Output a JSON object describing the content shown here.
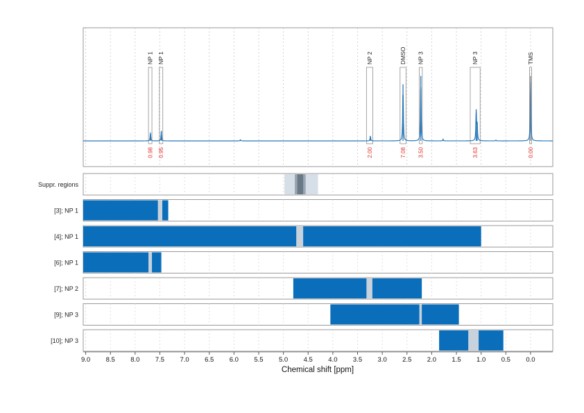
{
  "chart_data": {
    "type": "line",
    "xlabel": "Chemical shift [ppm]",
    "xlim": [
      9.05,
      -0.45
    ],
    "x_ticks": [
      "9.0",
      "8.5",
      "8.0",
      "7.5",
      "7.0",
      "6.5",
      "6.0",
      "5.5",
      "5.0",
      "4.5",
      "4.0",
      "3.5",
      "3.0",
      "2.5",
      "2.0",
      "1.5",
      "1.0",
      "0.5",
      "0.0"
    ],
    "grid": true,
    "colors": {
      "spectrum": "#2878b8",
      "bar": "#0a6eba",
      "gap": "#c8d2dc",
      "suppr_light": "#d6dfe7",
      "suppr_mid": "#9aa7b3",
      "suppr_dark": "#6b7987",
      "integral_label": "#e0302a",
      "frame": "#9a9a9a"
    },
    "spectrum_peaks": [
      {
        "ppm": 7.69,
        "height": 0.1
      },
      {
        "ppm": 7.47,
        "height": 0.12
      },
      {
        "ppm": 5.87,
        "height": 0.015
      },
      {
        "ppm": 3.24,
        "height": 0.06
      },
      {
        "ppm": 2.58,
        "height": 0.68
      },
      {
        "ppm": 2.22,
        "height": 0.78
      },
      {
        "ppm": 1.77,
        "height": 0.02
      },
      {
        "ppm": 1.1,
        "height": 0.38
      },
      {
        "ppm": 1.08,
        "height": 0.22
      },
      {
        "ppm": 0.7,
        "height": 0.01
      },
      {
        "ppm": 0.0,
        "height": 0.78
      }
    ],
    "annotations": [
      {
        "label": "NP 1",
        "ppm_from": 7.73,
        "ppm_to": 7.66,
        "integral": "0.98"
      },
      {
        "label": "NP 1",
        "ppm_from": 7.51,
        "ppm_to": 7.44,
        "integral": "0.95"
      },
      {
        "label": "NP 2",
        "ppm_from": 3.32,
        "ppm_to": 3.19,
        "integral": "2.00"
      },
      {
        "label": "DMSO",
        "ppm_from": 2.64,
        "ppm_to": 2.52,
        "integral": "7.08"
      },
      {
        "label": "NP 3",
        "ppm_from": 2.25,
        "ppm_to": 2.19,
        "integral": "3.50"
      },
      {
        "label": "NP 3",
        "ppm_from": 1.22,
        "ppm_to": 1.02,
        "integral": "3.63"
      },
      {
        "label": "TMS",
        "ppm_from": 0.02,
        "ppm_to": -0.02,
        "integral": "0.00"
      }
    ],
    "rows": [
      {
        "label": "Suppr. regions",
        "kind": "suppr",
        "regions": [
          {
            "from": 4.98,
            "to": 4.3,
            "tone": "light"
          },
          {
            "from": 4.77,
            "to": 4.55,
            "tone": "mid"
          },
          {
            "from": 4.72,
            "to": 4.6,
            "tone": "dark"
          }
        ]
      },
      {
        "label": "[3]; NP 1",
        "segments": [
          {
            "from": 9.05,
            "to": 7.33
          }
        ],
        "gaps": [
          {
            "from": 7.54,
            "to": 7.45
          }
        ]
      },
      {
        "label": "[4]; NP 1",
        "segments": [
          {
            "from": 9.05,
            "to": 1.0
          }
        ],
        "gaps": [
          {
            "from": 4.74,
            "to": 4.6
          }
        ]
      },
      {
        "label": "[6]; NP 1",
        "segments": [
          {
            "from": 9.05,
            "to": 7.47
          }
        ],
        "gaps": [
          {
            "from": 7.73,
            "to": 7.66
          }
        ]
      },
      {
        "label": "[7]; NP 2",
        "segments": [
          {
            "from": 4.8,
            "to": 2.2
          }
        ],
        "gaps": [
          {
            "from": 3.32,
            "to": 3.2
          }
        ]
      },
      {
        "label": "[9]; NP 3",
        "segments": [
          {
            "from": 4.05,
            "to": 1.45
          }
        ],
        "gaps": [
          {
            "from": 2.25,
            "to": 2.2
          }
        ]
      },
      {
        "label": "[10]; NP 3",
        "segments": [
          {
            "from": 1.85,
            "to": 0.55
          }
        ],
        "gaps": [
          {
            "from": 1.26,
            "to": 1.05
          }
        ]
      }
    ]
  }
}
